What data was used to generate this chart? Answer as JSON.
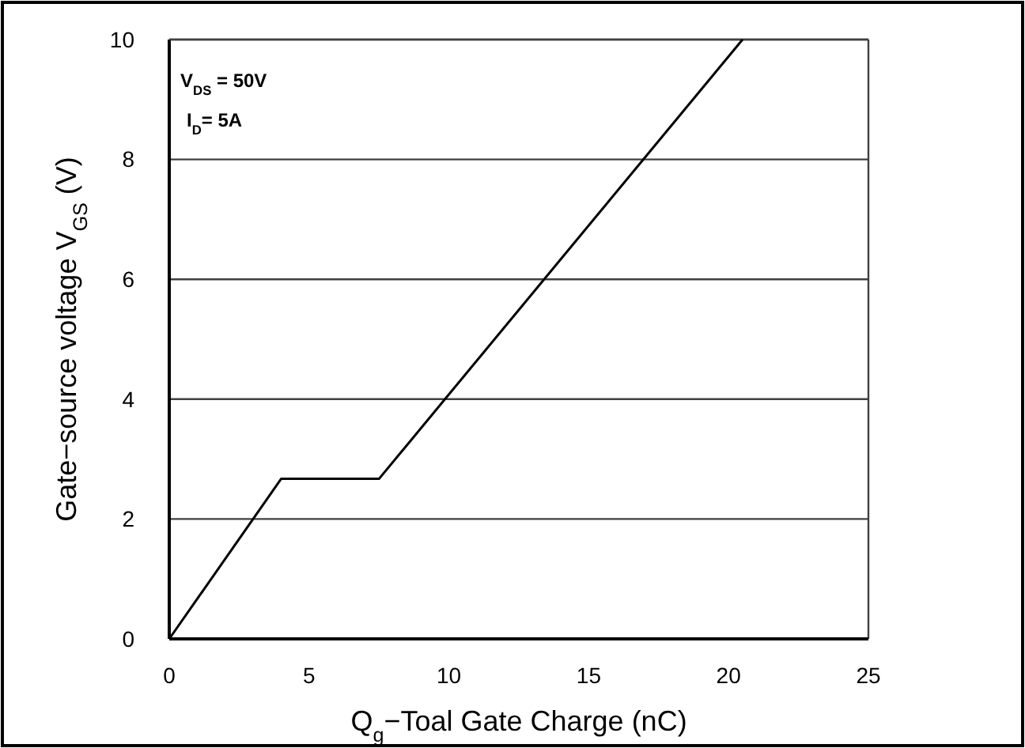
{
  "chart_data": {
    "type": "line",
    "xlabel": "Q$_{g}$−Toal Gate Charge (nC)",
    "ylabel": "Gate−source voltage V$_{GS}$ (V)",
    "x": [
      0,
      4,
      7.5,
      20.5
    ],
    "series": [
      {
        "color": "#000000",
        "values": [
          0,
          2.67,
          2.67,
          10
        ]
      }
    ],
    "xlim": [
      0,
      25
    ],
    "xticks": [
      0,
      5,
      10,
      15,
      20,
      25
    ],
    "ylim": [
      0,
      10
    ],
    "yticks": [
      0,
      2,
      4,
      6,
      8,
      10
    ],
    "grid": "y",
    "marker": "none",
    "line_style": "solid",
    "annotations": [
      "V$_{DS}$ = 50V",
      "I$_{D}$= 5A"
    ]
  }
}
